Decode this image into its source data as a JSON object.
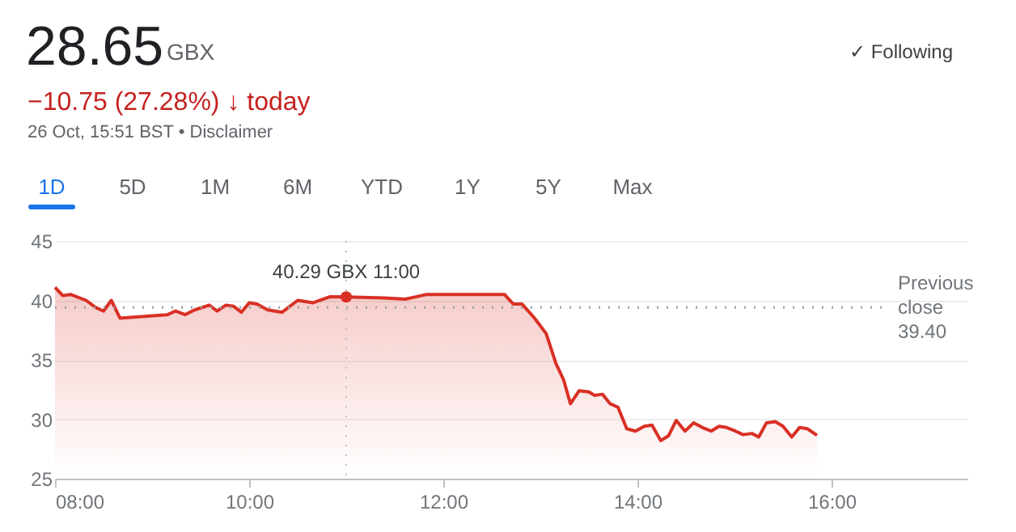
{
  "chart_data": {
    "type": "area",
    "title": "28.65",
    "annotations": [
      "GBX",
      "−10.75 (27.28%) ↓ today",
      "26 Oct, 15:51 BST • Disclaimer",
      "✓ Following",
      "1D",
      "5D",
      "1M",
      "6M",
      "YTD",
      "1Y",
      "5Y",
      "Max",
      {
        "text": "40.29 GBX  11:00",
        "x": 11,
        "y": 40.29
      }
    ],
    "series": [
      {
        "color": "#d93025",
        "x": [
          8.0,
          8.08,
          8.16,
          8.32,
          8.42,
          8.5,
          8.58,
          8.67,
          9.16,
          9.24,
          9.34,
          9.44,
          9.59,
          9.67,
          9.76,
          9.84,
          9.92,
          10.0,
          10.08,
          10.19,
          10.34,
          10.5,
          10.66,
          10.83,
          11.0,
          11.39,
          11.61,
          11.83,
          12.63,
          12.72,
          12.81,
          12.94,
          13.06,
          13.16,
          13.24,
          13.31,
          13.4,
          13.5,
          13.56,
          13.64,
          13.72,
          13.8,
          13.89,
          13.98,
          14.07,
          14.15,
          14.24,
          14.32,
          14.4,
          14.49,
          14.58,
          14.67,
          14.76,
          14.84,
          14.92,
          15.01,
          15.09,
          15.18,
          15.25,
          15.33,
          15.42,
          15.5,
          15.59,
          15.67,
          15.75,
          15.85
        ],
        "values": [
          41.1,
          40.4,
          40.5,
          40.0,
          39.4,
          39.1,
          40.0,
          38.5,
          38.8,
          39.1,
          38.8,
          39.2,
          39.6,
          39.1,
          39.6,
          39.5,
          39.0,
          39.8,
          39.7,
          39.2,
          39.0,
          40.0,
          39.8,
          40.3,
          40.29,
          40.2,
          40.1,
          40.5,
          40.5,
          39.7,
          39.7,
          38.5,
          37.2,
          34.7,
          33.3,
          31.3,
          32.4,
          32.3,
          32.0,
          32.1,
          31.3,
          31.0,
          29.2,
          29.0,
          29.4,
          29.5,
          28.2,
          28.6,
          29.9,
          29.0,
          29.7,
          29.3,
          29.0,
          29.4,
          29.3,
          29.0,
          28.7,
          28.8,
          28.5,
          29.7,
          29.8,
          29.4,
          28.5,
          29.3,
          29.2,
          28.65
        ]
      }
    ],
    "xlim": [
      8,
      17.4
    ],
    "xticks": [
      {
        "value": 8,
        "label": "08:00"
      },
      {
        "value": 10,
        "label": "10:00"
      },
      {
        "value": 12,
        "label": "12:00"
      },
      {
        "value": 14,
        "label": "14:00"
      },
      {
        "value": 16,
        "label": "16:00"
      }
    ],
    "ylim": [
      25,
      45
    ],
    "yticks": [
      25,
      30,
      35,
      40,
      45
    ],
    "grid": "y",
    "ref_lines": [
      {
        "axis": "y",
        "value": 39.4,
        "label": "Previous close 39.40",
        "line_style": "dotted",
        "color": "#9aa0a6"
      },
      {
        "axis": "x",
        "value": 11,
        "line_style": "dotted",
        "color": "#bdc1c6"
      }
    ]
  }
}
